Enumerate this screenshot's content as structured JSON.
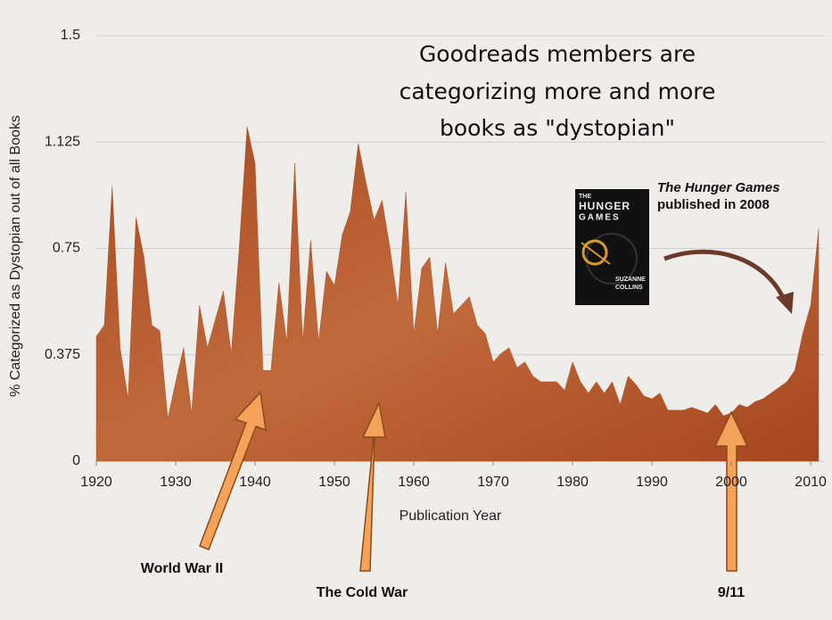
{
  "chart_data": {
    "type": "area",
    "title": [
      "Goodreads members are",
      "categorizing more and more",
      "books as \"dystopian\""
    ],
    "x_label": "Publication Year",
    "y_label": "% Categorized as Dystopian out of all Books",
    "color": "#b3552a",
    "grid": true,
    "x": [
      1920,
      1921,
      1922,
      1923,
      1924,
      1925,
      1926,
      1927,
      1928,
      1929,
      1930,
      1931,
      1932,
      1933,
      1934,
      1935,
      1936,
      1937,
      1938,
      1939,
      1940,
      1941,
      1942,
      1943,
      1944,
      1945,
      1946,
      1947,
      1948,
      1949,
      1950,
      1951,
      1952,
      1953,
      1954,
      1955,
      1956,
      1957,
      1958,
      1959,
      1960,
      1961,
      1962,
      1963,
      1964,
      1965,
      1966,
      1967,
      1968,
      1969,
      1970,
      1971,
      1972,
      1973,
      1974,
      1975,
      1976,
      1977,
      1978,
      1979,
      1980,
      1981,
      1982,
      1983,
      1984,
      1985,
      1986,
      1987,
      1988,
      1989,
      1990,
      1991,
      1992,
      1993,
      1994,
      1995,
      1996,
      1997,
      1998,
      1999,
      2000,
      2001,
      2002,
      2003,
      2004,
      2005,
      2006,
      2007,
      2008,
      2009,
      2010,
      2011
    ],
    "values": [
      0.44,
      0.48,
      0.97,
      0.4,
      0.22,
      0.86,
      0.72,
      0.48,
      0.46,
      0.15,
      0.28,
      0.4,
      0.17,
      0.55,
      0.4,
      0.5,
      0.6,
      0.38,
      0.75,
      1.18,
      1.05,
      0.32,
      0.32,
      0.63,
      0.42,
      1.05,
      0.42,
      0.78,
      0.42,
      0.67,
      0.62,
      0.8,
      0.88,
      1.12,
      0.98,
      0.85,
      0.92,
      0.75,
      0.55,
      0.95,
      0.45,
      0.68,
      0.72,
      0.45,
      0.7,
      0.52,
      0.55,
      0.58,
      0.48,
      0.45,
      0.35,
      0.38,
      0.4,
      0.33,
      0.35,
      0.3,
      0.28,
      0.28,
      0.28,
      0.25,
      0.35,
      0.28,
      0.24,
      0.28,
      0.24,
      0.28,
      0.2,
      0.3,
      0.27,
      0.23,
      0.22,
      0.24,
      0.18,
      0.18,
      0.18,
      0.19,
      0.18,
      0.17,
      0.2,
      0.16,
      0.17,
      0.2,
      0.19,
      0.21,
      0.22,
      0.24,
      0.26,
      0.28,
      0.32,
      0.45,
      0.55,
      0.82
    ],
    "xlim": [
      1920,
      2011
    ],
    "xticks": [
      1920,
      1930,
      1940,
      1950,
      1960,
      1970,
      1980,
      1990,
      2000,
      2010
    ],
    "ylim": [
      0,
      1.5
    ],
    "yticks": [
      0,
      0.375,
      0.75,
      1.125,
      1.5
    ],
    "annotations": {
      "hunger_games_title": "The Hunger Games",
      "hunger_games_text": "published in 2008",
      "cover": [
        "THE",
        "HUNGER",
        "GAMES",
        "SUZANNE",
        "COLLINS"
      ],
      "ww2": "World War II",
      "cold_war": "The Cold War",
      "nine_eleven": "9/11"
    }
  }
}
